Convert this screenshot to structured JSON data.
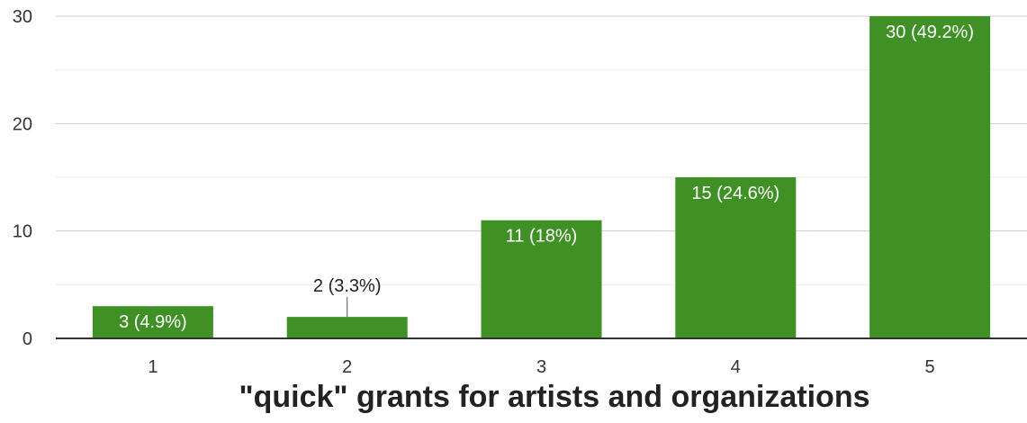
{
  "chart_data": {
    "type": "bar",
    "title": "",
    "xlabel": "\"quick\" grants for artists and organizations",
    "ylabel": "",
    "categories": [
      "1",
      "2",
      "3",
      "4",
      "5"
    ],
    "values": [
      3,
      2,
      11,
      15,
      30
    ],
    "data_labels": [
      "3 (4.9%)",
      "2 (3.3%)",
      "11 (18%)",
      "15 (24.6%)",
      "30 (49.2%)"
    ],
    "ylim": [
      0,
      30
    ],
    "yticks": [
      "0",
      "10",
      "20",
      "30"
    ],
    "grid": true,
    "legend": "none",
    "bar_color": "#3f9126"
  }
}
